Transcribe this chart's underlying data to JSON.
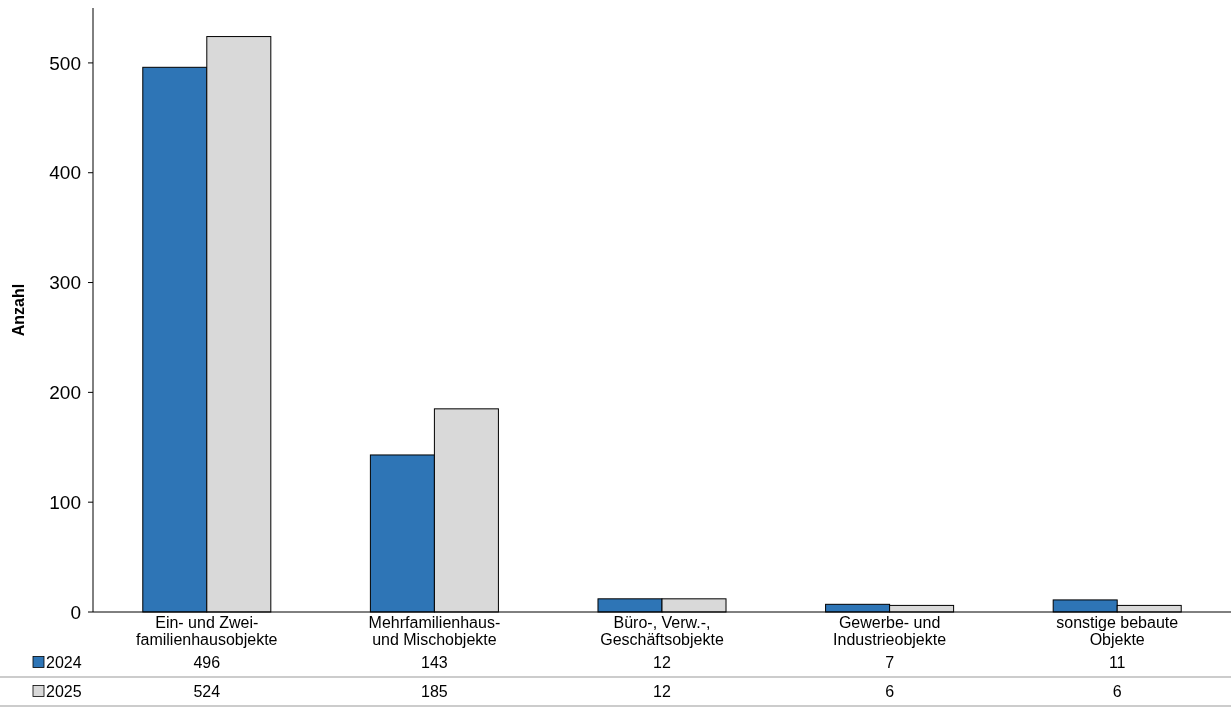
{
  "chart_data": {
    "type": "bar",
    "ylabel": "Anzahl",
    "categories": [
      "Ein- und Zwei-\nfamilienhausobjekte",
      "Mehrfamilienhaus-\nund Mischobjekte",
      "Büro-, Verw.-,\nGeschäftsobjekte",
      "Gewerbe- und\nIndustrieobjekte",
      "sonstige bebaute\nObjekte"
    ],
    "series": [
      {
        "name": "2024",
        "color": "#2e75b6",
        "values": [
          496,
          143,
          12,
          7,
          11
        ]
      },
      {
        "name": "2025",
        "color": "#d9d9d9",
        "values": [
          524,
          185,
          12,
          6,
          6
        ]
      }
    ],
    "ylim": [
      0,
      550
    ],
    "yticks": [
      0,
      100,
      200,
      300,
      400,
      500
    ],
    "grid": false,
    "legend": "bottom",
    "data_labels": true
  }
}
